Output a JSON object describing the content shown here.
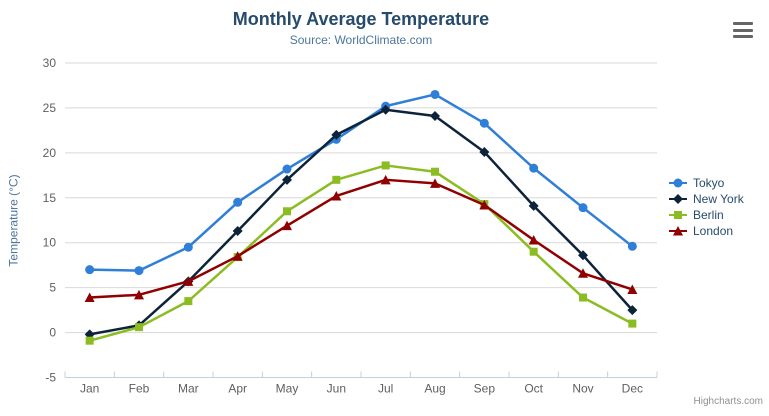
{
  "chart_data": {
    "type": "line",
    "title": "Monthly Average Temperature",
    "subtitle": "Source: WorldClimate.com",
    "categories": [
      "Jan",
      "Feb",
      "Mar",
      "Apr",
      "May",
      "Jun",
      "Jul",
      "Aug",
      "Sep",
      "Oct",
      "Nov",
      "Dec"
    ],
    "xlabel": "",
    "ylabel": "Temperature (°C)",
    "ylim": [
      -5,
      30
    ],
    "ytick_interval": 5,
    "grid": true,
    "legend_position": "right-middle",
    "series": [
      {
        "name": "Tokyo",
        "color": "#2f7ed8",
        "marker": "circle",
        "values": [
          7.0,
          6.9,
          9.5,
          14.5,
          18.2,
          21.5,
          25.2,
          26.5,
          23.3,
          18.3,
          13.9,
          9.6
        ]
      },
      {
        "name": "New York",
        "color": "#0d233a",
        "marker": "diamond",
        "values": [
          -0.2,
          0.8,
          5.7,
          11.3,
          17.0,
          22.0,
          24.8,
          24.1,
          20.1,
          14.1,
          8.6,
          2.5
        ]
      },
      {
        "name": "Berlin",
        "color": "#8bbc21",
        "marker": "square",
        "values": [
          -0.9,
          0.6,
          3.5,
          8.4,
          13.5,
          17.0,
          18.6,
          17.9,
          14.3,
          9.0,
          3.9,
          1.0
        ]
      },
      {
        "name": "London",
        "color": "#910000",
        "marker": "triangle",
        "values": [
          3.9,
          4.2,
          5.7,
          8.5,
          11.9,
          15.2,
          17.0,
          16.6,
          14.2,
          10.3,
          6.6,
          4.8
        ]
      }
    ]
  },
  "credits": {
    "label": "Highcharts.com"
  },
  "colors": {
    "title": "#274b6d",
    "subtitle": "#4d759e",
    "axis_title": "#4d759e",
    "axis_labels": "#606060",
    "grid_line": "#d8d8d8",
    "axis_line": "#c0d0e0",
    "legend_text": "#274b6d",
    "credits": "#909090",
    "menu_icon": "#666666"
  }
}
